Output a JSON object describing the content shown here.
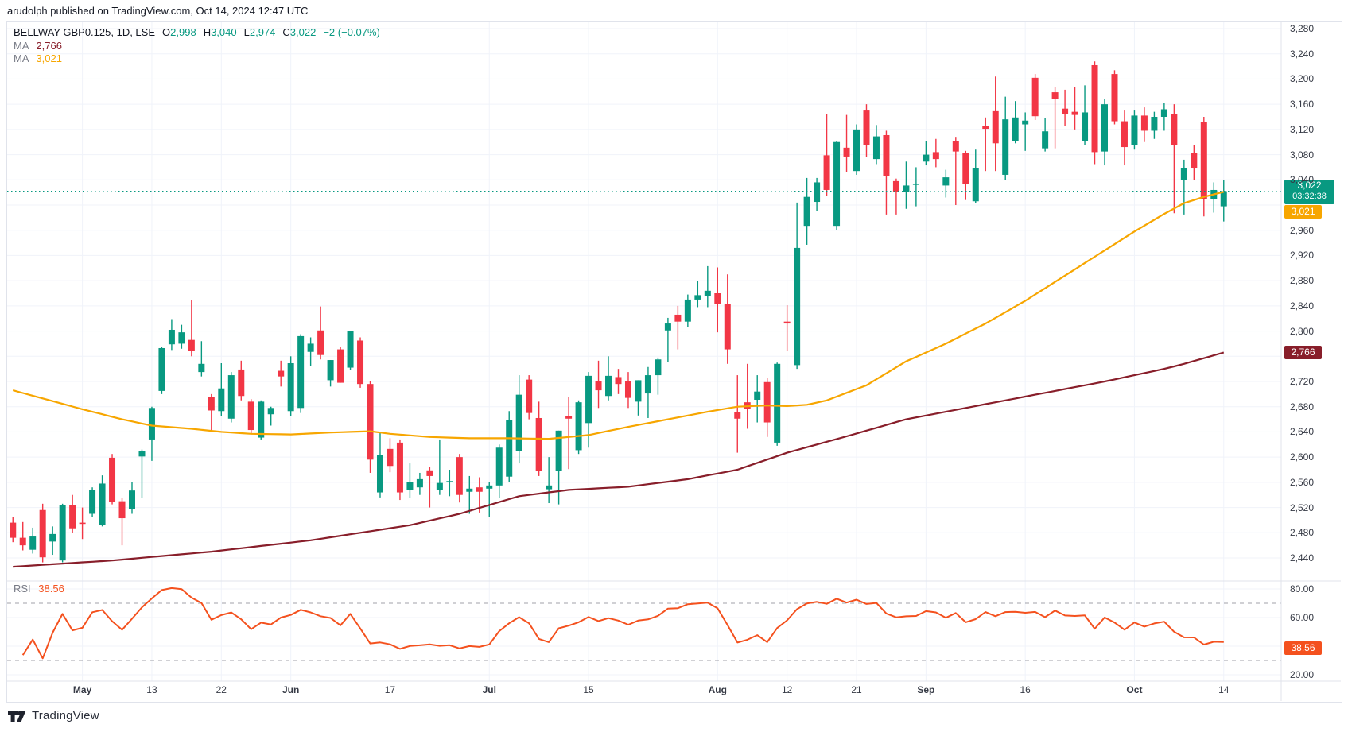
{
  "header": {
    "byline": "arudolph published on TradingView.com, Oct 14, 2024 12:47 UTC"
  },
  "legend": {
    "symbol": "BELLWAY GBP0.125, 1D, LSE",
    "open": {
      "k": "O",
      "v": "2,998"
    },
    "high": {
      "k": "H",
      "v": "3,040"
    },
    "low": {
      "k": "L",
      "v": "2,974"
    },
    "close": {
      "k": "C",
      "v": "3,022"
    },
    "change": "−2 (−0.07%)",
    "ma_rows": [
      {
        "label": "MA",
        "value": "2,766",
        "color": "#881e2a"
      },
      {
        "label": "MA",
        "value": "3,021",
        "color": "#f7a600"
      }
    ]
  },
  "rsi_legend": {
    "label": "RSI",
    "value": "38.56"
  },
  "badges": {
    "last": {
      "price": "3,022",
      "countdown": "03:32:38",
      "value": 3022,
      "color": "#089981"
    },
    "ma_orange": {
      "text": "3,021",
      "value": 3021,
      "color": "#f7a600"
    },
    "ma_dark": {
      "text": "2,766",
      "value": 2766,
      "color": "#881e2a"
    },
    "rsi": {
      "text": "38.56",
      "value": 38.56,
      "color": "#f4511e"
    }
  },
  "footer": {
    "logo_text": "TradingView"
  },
  "colors": {
    "up": "#089981",
    "down": "#f23645",
    "grid": "#f0f3fa",
    "border": "#e0e3eb",
    "axis_text": "#363a45",
    "ma_orange": "#f7a600",
    "ma_dark": "#881e2a",
    "rsi_line": "#f4511e",
    "dashed": "#787b86",
    "last_price_line": "#089981"
  },
  "chart_data": {
    "type": "candlestick",
    "title": "BELLWAY GBP0.125, 1D, LSE",
    "symbol": "BELLWAY",
    "currency": "GBP0.125",
    "interval": "1D",
    "exchange": "LSE",
    "ohlc_last": {
      "open": 2998,
      "high": 3040,
      "low": 2974,
      "close": 3022,
      "change": -2,
      "change_pct": -0.07
    },
    "last_price": {
      "value": 3022,
      "countdown": "03:32:38"
    },
    "price_axis": {
      "min": 2440,
      "max": 3280,
      "step": 40,
      "hidden_ticks": [
        3000,
        2760
      ]
    },
    "x_labels": [
      {
        "t": "May",
        "i": 7,
        "major": true
      },
      {
        "t": "13",
        "i": 14
      },
      {
        "t": "22",
        "i": 21
      },
      {
        "t": "Jun",
        "i": 28,
        "major": true
      },
      {
        "t": "17",
        "i": 38
      },
      {
        "t": "Jul",
        "i": 48,
        "major": true
      },
      {
        "t": "15",
        "i": 58
      },
      {
        "t": "Aug",
        "i": 71,
        "major": true
      },
      {
        "t": "12",
        "i": 78
      },
      {
        "t": "21",
        "i": 85
      },
      {
        "t": "Sep",
        "i": 92,
        "major": true
      },
      {
        "t": "16",
        "i": 102
      },
      {
        "t": "Oct",
        "i": 113,
        "major": true
      },
      {
        "t": "14",
        "i": 122
      }
    ],
    "candles": [
      [
        2496,
        2505,
        2465,
        2472
      ],
      [
        2472,
        2497,
        2452,
        2460
      ],
      [
        2453,
        2488,
        2447,
        2474
      ],
      [
        2516,
        2526,
        2433,
        2441
      ],
      [
        2466,
        2490,
        2445,
        2478
      ],
      [
        2436,
        2526,
        2433,
        2524
      ],
      [
        2524,
        2540,
        2480,
        2487
      ],
      [
        2496,
        2520,
        2470,
        2494
      ],
      [
        2510,
        2552,
        2505,
        2548
      ],
      [
        2492,
        2571,
        2490,
        2558
      ],
      [
        2599,
        2605,
        2525,
        2529
      ],
      [
        2530,
        2535,
        2460,
        2503
      ],
      [
        2518,
        2560,
        2510,
        2547
      ],
      [
        2601,
        2612,
        2535,
        2609
      ],
      [
        2628,
        2680,
        2594,
        2678
      ],
      [
        2705,
        2775,
        2700,
        2773
      ],
      [
        2779,
        2819,
        2770,
        2802
      ],
      [
        2780,
        2810,
        2772,
        2798
      ],
      [
        2786,
        2849,
        2760,
        2768
      ],
      [
        2735,
        2784,
        2728,
        2748
      ],
      [
        2696,
        2700,
        2640,
        2674
      ],
      [
        2673,
        2749,
        2665,
        2709
      ],
      [
        2661,
        2735,
        2655,
        2730
      ],
      [
        2739,
        2753,
        2690,
        2697
      ],
      [
        2688,
        2692,
        2638,
        2643
      ],
      [
        2631,
        2690,
        2628,
        2688
      ],
      [
        2668,
        2680,
        2650,
        2678
      ],
      [
        2737,
        2753,
        2712,
        2728
      ],
      [
        2673,
        2760,
        2665,
        2749
      ],
      [
        2678,
        2795,
        2670,
        2792
      ],
      [
        2767,
        2790,
        2745,
        2780
      ],
      [
        2801,
        2839,
        2755,
        2762
      ],
      [
        2722,
        2754,
        2712,
        2754
      ],
      [
        2771,
        2775,
        2718,
        2718
      ],
      [
        2742,
        2800,
        2738,
        2800
      ],
      [
        2785,
        2790,
        2710,
        2716
      ],
      [
        2716,
        2720,
        2575,
        2596
      ],
      [
        2544,
        2640,
        2536,
        2603
      ],
      [
        2613,
        2630,
        2576,
        2586
      ],
      [
        2623,
        2628,
        2532,
        2544
      ],
      [
        2548,
        2590,
        2535,
        2561
      ],
      [
        2552,
        2575,
        2540,
        2565
      ],
      [
        2579,
        2585,
        2520,
        2570
      ],
      [
        2548,
        2628,
        2540,
        2559
      ],
      [
        2560,
        2580,
        2538,
        2562
      ],
      [
        2600,
        2605,
        2528,
        2540
      ],
      [
        2545,
        2570,
        2510,
        2550
      ],
      [
        2552,
        2568,
        2512,
        2545
      ],
      [
        2550,
        2560,
        2505,
        2555
      ],
      [
        2555,
        2620,
        2535,
        2615
      ],
      [
        2569,
        2673,
        2560,
        2659
      ],
      [
        2610,
        2730,
        2590,
        2699
      ],
      [
        2723,
        2730,
        2660,
        2670
      ],
      [
        2662,
        2688,
        2570,
        2578
      ],
      [
        2549,
        2600,
        2527,
        2555
      ],
      [
        2578,
        2642,
        2525,
        2642
      ],
      [
        2665,
        2695,
        2581,
        2661
      ],
      [
        2611,
        2690,
        2605,
        2687
      ],
      [
        2654,
        2735,
        2615,
        2729
      ],
      [
        2720,
        2753,
        2678,
        2706
      ],
      [
        2697,
        2760,
        2690,
        2729
      ],
      [
        2727,
        2740,
        2700,
        2716
      ],
      [
        2721,
        2735,
        2678,
        2694
      ],
      [
        2688,
        2722,
        2666,
        2722
      ],
      [
        2701,
        2743,
        2662,
        2730
      ],
      [
        2730,
        2758,
        2699,
        2755
      ],
      [
        2801,
        2821,
        2751,
        2812
      ],
      [
        2826,
        2840,
        2771,
        2815
      ],
      [
        2815,
        2858,
        2806,
        2850
      ],
      [
        2850,
        2880,
        2838,
        2857
      ],
      [
        2855,
        2903,
        2838,
        2864
      ],
      [
        2860,
        2901,
        2798,
        2843
      ],
      [
        2843,
        2890,
        2748,
        2771
      ],
      [
        2672,
        2730,
        2607,
        2661
      ],
      [
        2687,
        2748,
        2645,
        2677
      ],
      [
        2691,
        2730,
        2655,
        2704
      ],
      [
        2719,
        2725,
        2632,
        2655
      ],
      [
        2623,
        2750,
        2618,
        2748
      ],
      [
        2815,
        2841,
        2769,
        2812
      ],
      [
        2746,
        3004,
        2740,
        2932
      ],
      [
        2967,
        3043,
        2937,
        3013
      ],
      [
        3005,
        3043,
        2990,
        3036
      ],
      [
        3079,
        3145,
        3015,
        3024
      ],
      [
        2967,
        3101,
        2960,
        3100
      ],
      [
        3091,
        3143,
        3052,
        3077
      ],
      [
        3054,
        3128,
        3048,
        3120
      ],
      [
        3150,
        3160,
        3076,
        3095
      ],
      [
        3073,
        3127,
        3065,
        3109
      ],
      [
        3111,
        3118,
        2985,
        3046
      ],
      [
        3038,
        3042,
        2985,
        3021
      ],
      [
        3021,
        3069,
        2994,
        3031
      ],
      [
        3032,
        3060,
        2998,
        3034
      ],
      [
        3069,
        3101,
        3063,
        3080
      ],
      [
        3084,
        3105,
        3060,
        3073
      ],
      [
        3031,
        3056,
        3012,
        3044
      ],
      [
        3101,
        3107,
        3000,
        3085
      ],
      [
        3082,
        3086,
        3008,
        3033
      ],
      [
        3006,
        3088,
        3003,
        3058
      ],
      [
        3125,
        3139,
        3054,
        3121
      ],
      [
        3149,
        3204,
        3054,
        3098
      ],
      [
        3048,
        3172,
        3040,
        3136
      ],
      [
        3101,
        3165,
        3098,
        3139
      ],
      [
        3128,
        3147,
        3086,
        3134
      ],
      [
        3202,
        3208,
        3135,
        3141
      ],
      [
        3090,
        3138,
        3085,
        3117
      ],
      [
        3179,
        3187,
        3090,
        3168
      ],
      [
        3153,
        3183,
        3126,
        3145
      ],
      [
        3148,
        3187,
        3120,
        3143
      ],
      [
        3101,
        3190,
        3095,
        3147
      ],
      [
        3222,
        3228,
        3065,
        3084
      ],
      [
        3085,
        3168,
        3063,
        3160
      ],
      [
        3208,
        3214,
        3128,
        3133
      ],
      [
        3133,
        3150,
        3063,
        3092
      ],
      [
        3095,
        3150,
        3088,
        3142
      ],
      [
        3142,
        3155,
        3100,
        3118
      ],
      [
        3118,
        3148,
        3105,
        3140
      ],
      [
        3140,
        3162,
        3118,
        3152
      ],
      [
        3145,
        3160,
        2987,
        3095
      ],
      [
        3040,
        3072,
        2985,
        3059
      ],
      [
        3083,
        3095,
        3040,
        3058
      ],
      [
        3132,
        3140,
        2982,
        3009
      ],
      [
        3009,
        3036,
        2988,
        3024
      ],
      [
        2998,
        3040,
        2974,
        3022
      ]
    ],
    "ma_lines": [
      {
        "name": "MA slow (dark red)",
        "color": "#881e2a",
        "current": 2766,
        "points": [
          [
            0,
            2426
          ],
          [
            10,
            2436
          ],
          [
            20,
            2450
          ],
          [
            30,
            2468
          ],
          [
            40,
            2492
          ],
          [
            45,
            2510
          ],
          [
            51,
            2538
          ],
          [
            56,
            2548
          ],
          [
            62,
            2553
          ],
          [
            68,
            2565
          ],
          [
            73,
            2580
          ],
          [
            78,
            2607
          ],
          [
            84,
            2633
          ],
          [
            90,
            2660
          ],
          [
            94,
            2672
          ],
          [
            98,
            2684
          ],
          [
            102,
            2696
          ],
          [
            106,
            2708
          ],
          [
            110,
            2720
          ],
          [
            113,
            2730
          ],
          [
            116,
            2740
          ],
          [
            118,
            2748
          ],
          [
            120,
            2757
          ],
          [
            122,
            2766
          ]
        ]
      },
      {
        "name": "MA fast (orange)",
        "color": "#f7a600",
        "current": 3021,
        "points": [
          [
            0,
            2706
          ],
          [
            7,
            2676
          ],
          [
            11,
            2660
          ],
          [
            14,
            2650
          ],
          [
            18,
            2645
          ],
          [
            21,
            2640
          ],
          [
            24,
            2637
          ],
          [
            28,
            2636
          ],
          [
            32,
            2639
          ],
          [
            36,
            2641
          ],
          [
            38,
            2637
          ],
          [
            42,
            2632
          ],
          [
            46,
            2630
          ],
          [
            50,
            2630
          ],
          [
            54,
            2629
          ],
          [
            58,
            2635
          ],
          [
            62,
            2648
          ],
          [
            66,
            2660
          ],
          [
            70,
            2672
          ],
          [
            73,
            2680
          ],
          [
            76,
            2682
          ],
          [
            78,
            2681
          ],
          [
            80,
            2683
          ],
          [
            82,
            2690
          ],
          [
            84,
            2702
          ],
          [
            86,
            2714
          ],
          [
            88,
            2733
          ],
          [
            90,
            2752
          ],
          [
            94,
            2780
          ],
          [
            98,
            2812
          ],
          [
            102,
            2848
          ],
          [
            106,
            2888
          ],
          [
            108,
            2908
          ],
          [
            110,
            2928
          ],
          [
            113,
            2958
          ],
          [
            116,
            2986
          ],
          [
            118,
            3003
          ],
          [
            120,
            3013
          ],
          [
            121,
            3017
          ],
          [
            122,
            3021
          ]
        ]
      }
    ],
    "rsi": {
      "period": 14,
      "current": 38.56,
      "overbought": 70,
      "oversold": 30,
      "axis_ticks": [
        80,
        60,
        20
      ],
      "axis_grid": [
        80,
        60,
        40,
        20
      ],
      "ylim": [
        15,
        86
      ]
    }
  }
}
